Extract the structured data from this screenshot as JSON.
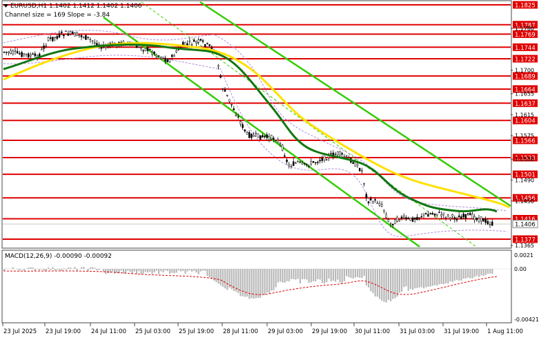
{
  "header": {
    "symbol_line": "EURUSD,H1  1.1402 1.1412 1.1402 1.1406",
    "channel_line": "Channel size = 169 Slope = -3.84"
  },
  "price_axis": {
    "labels": [
      "1.1780",
      "1.1700",
      "1.1655",
      "1.1615",
      "1.1575",
      "1.1530",
      "1.1490",
      "1.1450",
      "1.1365"
    ]
  },
  "levels": [
    {
      "label": "1.1825",
      "value": 1.1825
    },
    {
      "label": "1.1787",
      "value": 1.1787
    },
    {
      "label": "1.1769",
      "value": 1.1769
    },
    {
      "label": "1.1744",
      "value": 1.1744
    },
    {
      "label": "1.1722",
      "value": 1.1722
    },
    {
      "label": "1.1689",
      "value": 1.1689
    },
    {
      "label": "1.1664",
      "value": 1.1664
    },
    {
      "label": "1.1637",
      "value": 1.1637
    },
    {
      "label": "1.1604",
      "value": 1.1604
    },
    {
      "label": "1.1566",
      "value": 1.1566
    },
    {
      "label": "1.1533",
      "value": 1.1533
    },
    {
      "label": "1.1501",
      "value": 1.1501
    },
    {
      "label": "1.1456",
      "value": 1.1456
    },
    {
      "label": "1.1416",
      "value": 1.1416
    },
    {
      "label": "1.1377",
      "value": 1.1377
    }
  ],
  "current_price": {
    "label": "1.1406",
    "value": 1.1406
  },
  "macd": {
    "label": "MACD(12,26,9) -0.00090 -0.00092",
    "axis_labels": [
      "0.0021",
      "0.00",
      "-0.00421"
    ]
  },
  "time_axis": {
    "labels": [
      "23 Jul 2025",
      "23 Jul 19:00",
      "24 Jul 11:00",
      "25 Jul 03:00",
      "25 Jul 19:00",
      "28 Jul 11:00",
      "29 Jul 03:00",
      "29 Jul 19:00",
      "30 Jul 11:00",
      "31 Jul 03:00",
      "31 Jul 19:00",
      "1 Aug 11:00"
    ]
  },
  "colors": {
    "level_line": "#e00000",
    "level_label_bg": "#e00000",
    "channel": "#33cc00",
    "ma_fast": "#117711",
    "ma_slow": "#ffe000",
    "envelope": "#b088dd",
    "histogram": "#b8b8b8",
    "signal": "#dd0000"
  },
  "icons": {
    "symbol_marker": "triangle-down-icon"
  }
}
